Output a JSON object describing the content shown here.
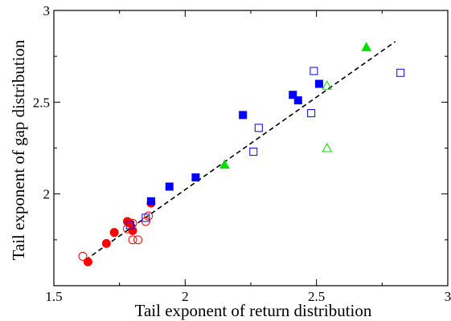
{
  "chart_data": {
    "type": "scatter",
    "title": "",
    "xlabel": "Tail exponent of return distribution",
    "ylabel": "Tail exponent of gap distribution",
    "xlim": [
      1.5,
      3.0
    ],
    "ylim": [
      1.5,
      3.0
    ],
    "xticks": [
      "1.5",
      "2",
      "2.5",
      "3"
    ],
    "yticks": [
      "2",
      "2.5",
      "3"
    ],
    "xtick_values": [
      1.5,
      2.0,
      2.5,
      3.0
    ],
    "ytick_values": [
      2.0,
      2.5,
      3.0
    ],
    "grid": false,
    "legend": "none",
    "fit_line": {
      "style": "dashed",
      "color": "#000000",
      "points": [
        [
          1.62,
          1.64
        ],
        [
          2.8,
          2.83
        ]
      ]
    },
    "series": [
      {
        "marker": "filled-circle",
        "color": "#ff0000",
        "points": [
          [
            1.63,
            1.63
          ],
          [
            1.7,
            1.73
          ],
          [
            1.73,
            1.79
          ],
          [
            1.78,
            1.85
          ],
          [
            1.8,
            1.8
          ],
          [
            1.87,
            1.95
          ],
          [
            1.79,
            1.84
          ]
        ]
      },
      {
        "marker": "open-circle",
        "color": "#ff0000",
        "points": [
          [
            1.61,
            1.66
          ],
          [
            1.8,
            1.75
          ],
          [
            1.82,
            1.75
          ],
          [
            1.8,
            1.84
          ],
          [
            1.85,
            1.85
          ],
          [
            1.86,
            1.88
          ],
          [
            1.78,
            1.81
          ]
        ]
      },
      {
        "marker": "filled-square",
        "color": "#0000ff",
        "points": [
          [
            1.87,
            1.96
          ],
          [
            1.94,
            2.04
          ],
          [
            2.04,
            2.09
          ],
          [
            2.22,
            2.43
          ],
          [
            2.41,
            2.54
          ],
          [
            2.43,
            2.51
          ],
          [
            2.51,
            2.6
          ]
        ]
      },
      {
        "marker": "open-square",
        "color": "#0000ff",
        "points": [
          [
            1.79,
            1.83
          ],
          [
            1.85,
            1.87
          ],
          [
            2.26,
            2.23
          ],
          [
            2.28,
            2.36
          ],
          [
            2.48,
            2.44
          ],
          [
            2.49,
            2.67
          ],
          [
            2.82,
            2.66
          ]
        ]
      },
      {
        "marker": "filled-triangle",
        "color": "#00dd00",
        "points": [
          [
            2.15,
            2.16
          ],
          [
            2.69,
            2.8
          ]
        ]
      },
      {
        "marker": "open-triangle",
        "color": "#00dd00",
        "points": [
          [
            2.54,
            2.59
          ],
          [
            2.54,
            2.25
          ]
        ]
      }
    ]
  }
}
